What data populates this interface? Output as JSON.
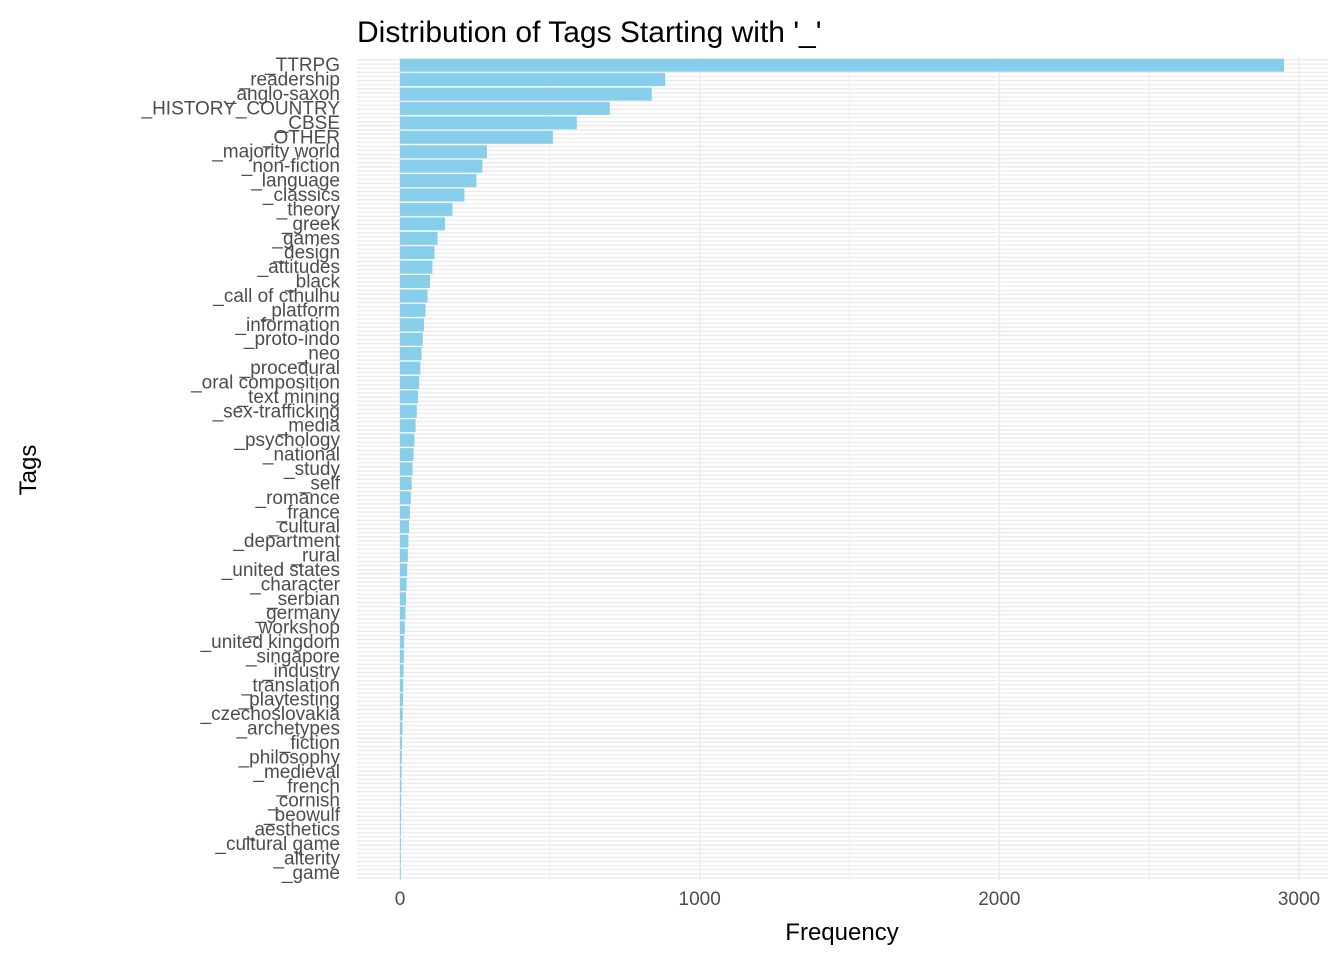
{
  "chart_data": {
    "type": "bar",
    "orientation": "horizontal",
    "title": "Distribution of Tags Starting with '_'",
    "xlabel": "Frequency",
    "ylabel": "Tags",
    "xlim": [
      0,
      3000
    ],
    "x_ticks": [
      0,
      1000,
      2000,
      3000
    ],
    "grid": true,
    "bar_color": "#87ceeb",
    "panel_grid_color": "#ebebeb",
    "categories": [
      "_TTRPG",
      "_readership",
      "_anglo-saxon",
      "_HISTORY_COUNTRY",
      "_CBSE",
      "_OTHER",
      "_majority world",
      "_non-fiction",
      "_language",
      "_classics",
      "_theory",
      "_greek",
      "_games",
      "_design",
      "_attitudes",
      "_black",
      "_call of cthulhu",
      "_platform",
      "_information",
      "_proto-indo",
      "_neo",
      "_procedural",
      "_oral composition",
      "_text mining",
      "_sex-trafficking",
      "_media",
      "_psychology",
      "_national",
      "_study",
      "_self",
      "_romance",
      "_france",
      "_cultural",
      "_department",
      "_rural",
      "_united states",
      "_character",
      "_serbian",
      "_germany",
      "_workshop",
      "_united kingdom",
      "_singapore",
      "_industry",
      "_translation",
      "_playtesting",
      "_czechoslovakia",
      "_archetypes",
      "_fiction",
      "_philosophy",
      "_medieval",
      "_french",
      "_cornish",
      "_beowulf",
      "_aesthetics",
      "_cultural game",
      "_alterity",
      "_game"
    ],
    "values": [
      2950,
      885,
      840,
      700,
      590,
      510,
      290,
      275,
      255,
      215,
      175,
      150,
      125,
      115,
      108,
      100,
      92,
      85,
      80,
      76,
      72,
      68,
      64,
      60,
      56,
      52,
      48,
      45,
      42,
      39,
      36,
      33,
      30,
      28,
      26,
      24,
      22,
      20,
      18,
      16,
      14,
      13,
      12,
      11,
      10,
      9,
      8,
      7,
      6,
      5,
      5,
      4,
      4,
      3,
      3,
      2,
      1
    ]
  }
}
